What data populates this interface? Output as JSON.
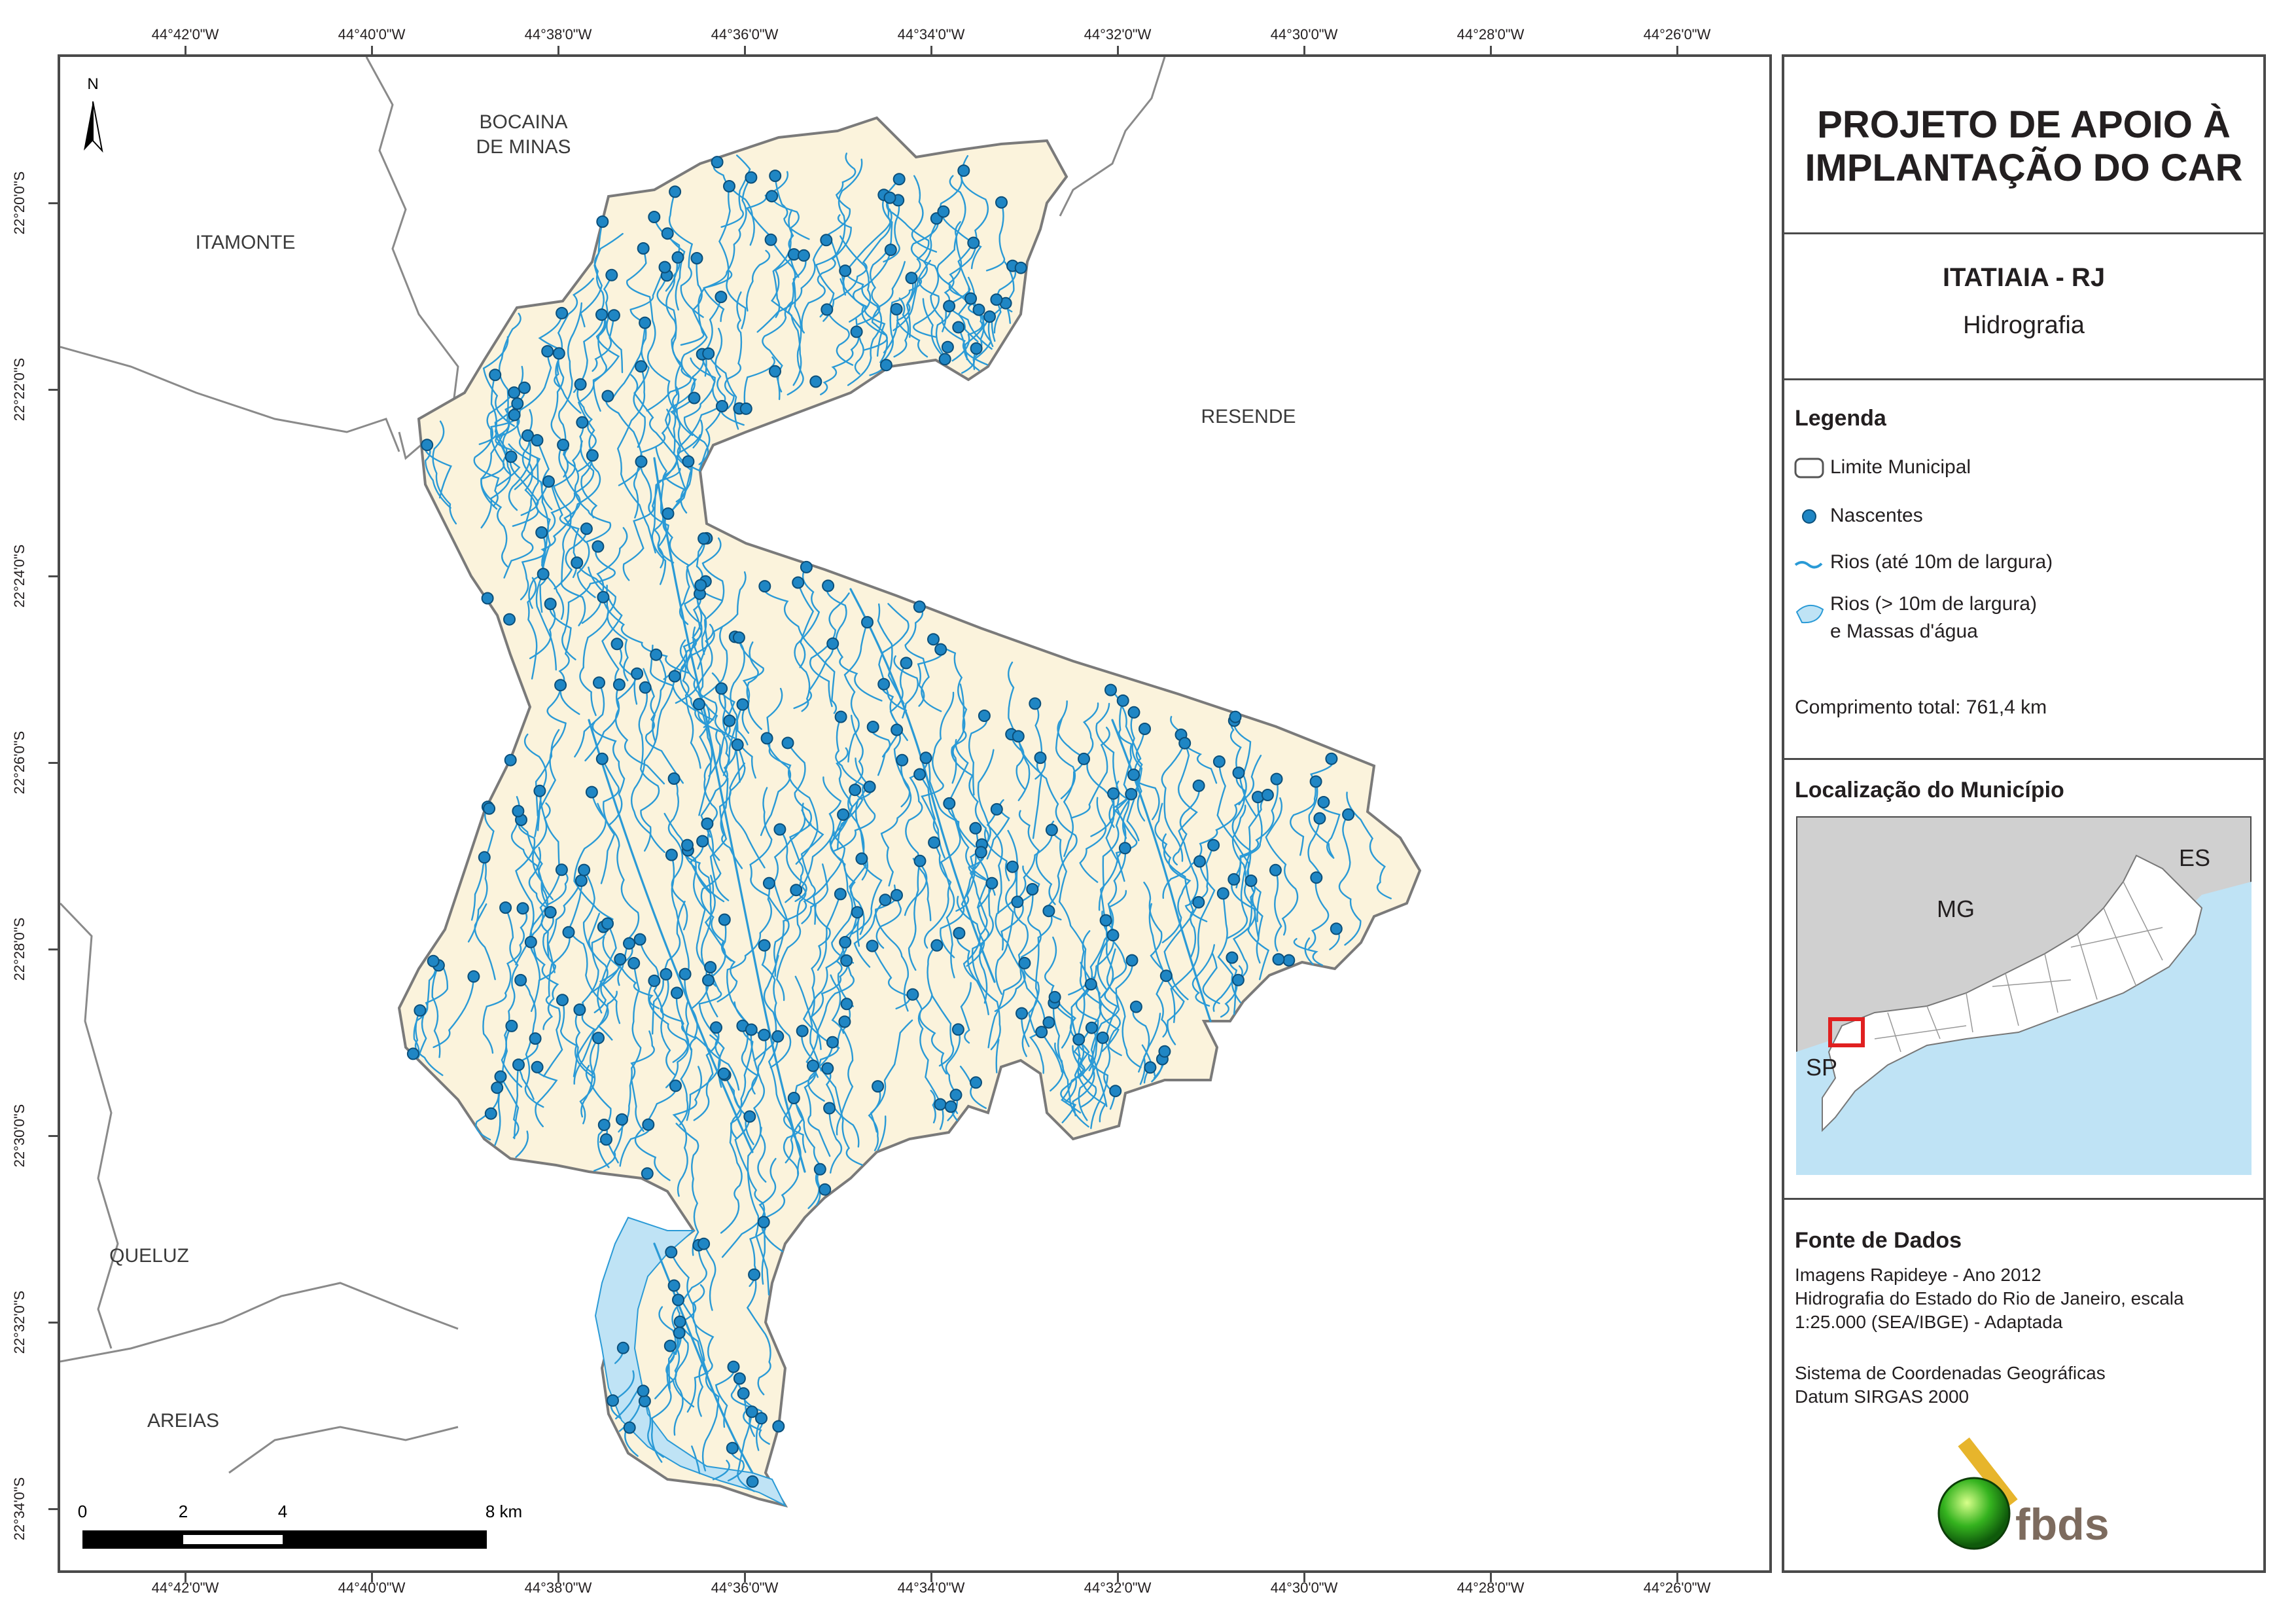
{
  "map": {
    "graticule_lon": [
      "44°42'0\"W",
      "44°40'0\"W",
      "44°38'0\"W",
      "44°36'0\"W",
      "44°34'0\"W",
      "44°32'0\"W",
      "44°30'0\"W",
      "44°28'0\"W",
      "44°26'0\"W"
    ],
    "graticule_lat": [
      "22°20'0\"S",
      "22°22'0\"S",
      "22°24'0\"S",
      "22°26'0\"S",
      "22°28'0\"S",
      "22°30'0\"S",
      "22°32'0\"S",
      "22°34'0\"S"
    ],
    "north_label": "N",
    "neighbors": {
      "bocaina_line1": "BOCAINA",
      "bocaina_line2": "DE MINAS",
      "itamonte": "ITAMONTE",
      "resende": "RESENDE",
      "queluz": "QUELUZ",
      "areias": "AREIAS"
    },
    "scale_labels": [
      "0",
      "2",
      "4",
      "8 km"
    ],
    "colors": {
      "municipality_fill": "#fbf3dc",
      "river": "#2a9ad6",
      "spring": "#1f86c4",
      "water_body": "#bfe3f5",
      "boundary": "#7a7a7a"
    }
  },
  "panel": {
    "title_line1": "PROJETO DE APOIO À",
    "title_line2": "IMPLANTAÇÃO DO CAR",
    "municipality": "ITATIAIA - RJ",
    "theme": "Hidrografia",
    "legend_heading": "Legenda",
    "legend": {
      "limit": "Limite Municipal",
      "springs": "Nascentes",
      "rivers_small": "Rios (até 10m de largura)",
      "rivers_large_line1": "Rios (> 10m de largura)",
      "rivers_large_line2": "e Massas d'água"
    },
    "total_length": "Comprimento total:  761,4 km",
    "location_heading": "Localização do Município",
    "inset_labels": {
      "mg": "MG",
      "es": "ES",
      "sp": "SP"
    },
    "sources_heading": "Fonte de Dados",
    "sources_text": "Imagens Rapideye - Ano 2012\nHidrografia do Estado do Rio de Janeiro, escala\n1:25.000 (SEA/IBGE) - Adaptada",
    "crs_text": "Sistema de Coordenadas Geográficas\nDatum SIRGAS 2000",
    "logo_text": "fbds"
  }
}
